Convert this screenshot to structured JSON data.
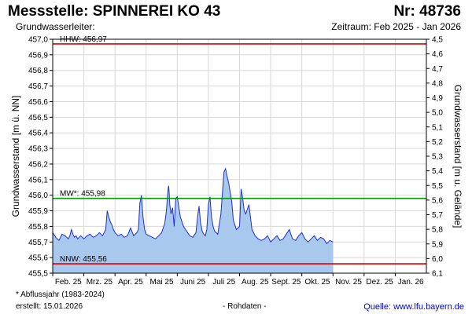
{
  "header": {
    "title": "Messstelle: SPINNEREI KO 43",
    "number": "Nr: 48736",
    "aquifer": "Grundwasserleiter:",
    "period": "Zeitraum: Feb 2025 - Jan 2026"
  },
  "footer": {
    "footnote": "* Abflussjahr (1983-2024)",
    "created": "erstellt:  15.01.2026",
    "rawdata": "- Rohdaten -",
    "source_prefix": "Quelle: ",
    "source_link": "www.lfu.bayern.de"
  },
  "colors": {
    "series_line": "#1f2fcc",
    "series_fill": "#a9c8ee",
    "extreme_lines": "#dd0000",
    "mean_line": "#009900"
  },
  "chart_data": {
    "type": "area",
    "ylabel_left": "Grundwasserstand [m ü. NN]",
    "ylabel_right": "Grundwasserstand [m u. Gelände]",
    "ylim": [
      455.5,
      457.0
    ],
    "ylim_right": [
      6.1,
      4.5
    ],
    "yticks_left": [
      "457,0",
      "456,9",
      "456,8",
      "456,7",
      "456,6",
      "456,5",
      "456,4",
      "456,3",
      "456,2",
      "456,1",
      "456,0",
      "455,9",
      "455,8",
      "455,7",
      "455,6",
      "455,5"
    ],
    "yticks_right": [
      "4,5",
      "4,6",
      "4,7",
      "4,8",
      "4,9",
      "5,0",
      "5,1",
      "5,2",
      "5,3",
      "5,4",
      "5,5",
      "5,6",
      "5,7",
      "5,8",
      "5,9",
      "6,0",
      "6,1"
    ],
    "xticks": [
      "Feb. 25",
      "Mrz. 25",
      "Apr. 25",
      "Mai 25",
      "Juni 25",
      "Juli 25",
      "Aug. 25",
      "Sept. 25",
      "Okt. 25",
      "Nov. 25",
      "Dez. 25",
      "Jan. 26"
    ],
    "grid": true,
    "reference_lines": [
      {
        "label": "HHW: 456,97",
        "value": 456.97
      },
      {
        "label": "MW*: 455,98",
        "value": 455.98
      },
      {
        "label": "NNW: 455,56",
        "value": 455.56
      }
    ],
    "series": [
      {
        "x": [
          0,
          0.1,
          0.2,
          0.3,
          0.4,
          0.5,
          0.55,
          0.6,
          0.65,
          0.7,
          0.75,
          0.8,
          0.85,
          0.9,
          0.95,
          1.0,
          1.05,
          1.1,
          1.2,
          1.3,
          1.4,
          1.5,
          1.6,
          1.7,
          1.75,
          1.8,
          1.85,
          1.9,
          1.95,
          2.0,
          2.1,
          2.2,
          2.3,
          2.4,
          2.5,
          2.6,
          2.7,
          2.75,
          2.8,
          2.85,
          2.9,
          2.95,
          3.0,
          3.1,
          3.2,
          3.3,
          3.4,
          3.5,
          3.6,
          3.65,
          3.7,
          3.72,
          3.74,
          3.76,
          3.8,
          3.85,
          3.9,
          3.95,
          4.0,
          4.1,
          4.2,
          4.3,
          4.4,
          4.5,
          4.6,
          4.65,
          4.7,
          4.75,
          4.8,
          4.85,
          4.9,
          4.95,
          5.0,
          5.05,
          5.1,
          5.15,
          5.2,
          5.3,
          5.4,
          5.5,
          5.55,
          5.6,
          5.65,
          5.7,
          5.75,
          5.8,
          5.9,
          6.0,
          6.05,
          6.1,
          6.15,
          6.2,
          6.3,
          6.4,
          6.5,
          6.6,
          6.7,
          6.8,
          6.9,
          7.0,
          7.1,
          7.2,
          7.3,
          7.4,
          7.5,
          7.6,
          7.7,
          7.8,
          7.9,
          8.0,
          8.1,
          8.2,
          8.3,
          8.4,
          8.5,
          8.6,
          8.7,
          8.8,
          8.9,
          9.0
        ],
        "values": [
          455.76,
          455.73,
          455.71,
          455.75,
          455.74,
          455.72,
          455.74,
          455.78,
          455.75,
          455.73,
          455.74,
          455.72,
          455.73,
          455.74,
          455.73,
          455.72,
          455.73,
          455.74,
          455.75,
          455.73,
          455.74,
          455.76,
          455.74,
          455.78,
          455.9,
          455.86,
          455.83,
          455.81,
          455.78,
          455.76,
          455.74,
          455.75,
          455.73,
          455.74,
          455.79,
          455.74,
          455.76,
          455.78,
          455.95,
          456.0,
          455.86,
          455.78,
          455.75,
          455.74,
          455.73,
          455.72,
          455.74,
          455.76,
          455.82,
          455.9,
          456.03,
          456.06,
          456.02,
          455.94,
          455.88,
          455.92,
          455.8,
          455.98,
          455.99,
          455.86,
          455.8,
          455.77,
          455.74,
          455.73,
          455.76,
          455.86,
          455.93,
          455.82,
          455.77,
          455.75,
          455.74,
          455.78,
          455.94,
          455.99,
          455.86,
          455.8,
          455.77,
          455.75,
          455.88,
          456.15,
          456.17,
          456.12,
          456.08,
          456.02,
          455.96,
          455.84,
          455.78,
          455.8,
          456.04,
          455.98,
          455.9,
          455.88,
          455.94,
          455.78,
          455.74,
          455.72,
          455.71,
          455.72,
          455.74,
          455.7,
          455.72,
          455.74,
          455.71,
          455.72,
          455.75,
          455.78,
          455.72,
          455.71,
          455.74,
          455.76,
          455.72,
          455.7,
          455.72,
          455.74,
          455.71,
          455.73,
          455.72,
          455.69,
          455.71,
          455.7
        ]
      }
    ]
  }
}
